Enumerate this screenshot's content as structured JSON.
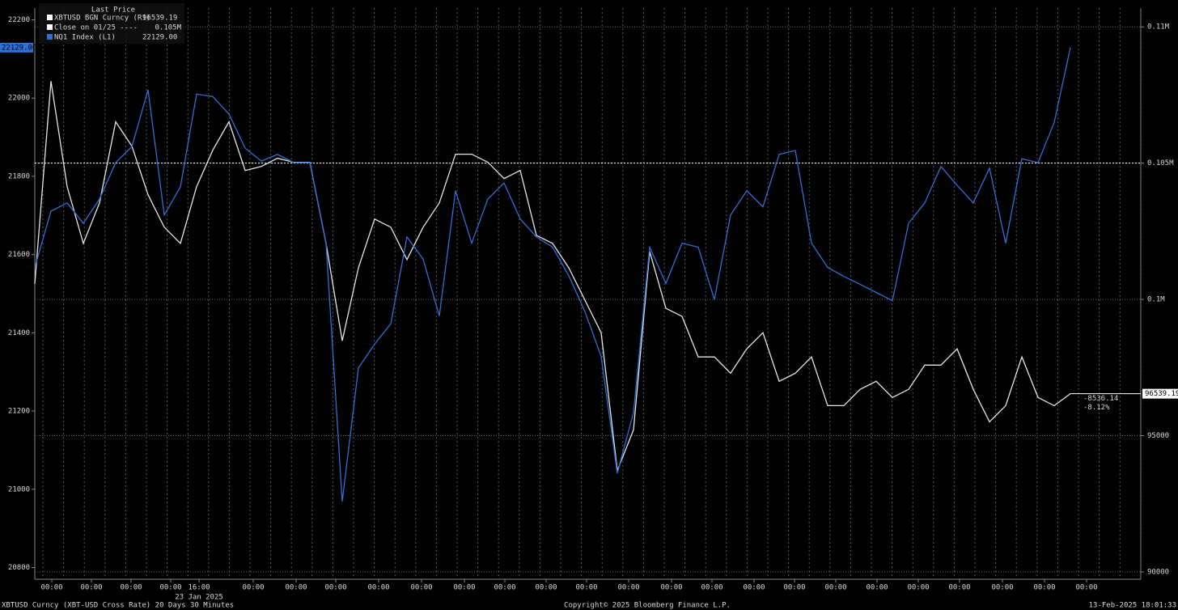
{
  "chart_data": {
    "type": "line",
    "legend_title": "Last Price",
    "footer_left": "XBTUSD Curncy (XBT-USD Cross Rate) 20 Days 30 Minutes",
    "footer_center": "Copyright© 2025 Bloomberg Finance L.P.",
    "footer_right": "13-Feb-2025 18:01:33",
    "xtick_labels": [
      "00:00",
      "00:00",
      "00:00",
      "00:00",
      "16:00",
      "00:00",
      "00:00",
      "00:00",
      "00:00",
      "00:00",
      "00:00",
      "00:00",
      "00:00",
      "00:00",
      "00:00",
      "00:00",
      "00:00",
      "00:00",
      "00:00",
      "00:00",
      "00:00",
      "00:00",
      "00:00",
      "00:00",
      "00:00",
      "00:00"
    ],
    "xdate_label": "23 Jan 2025",
    "ylim": [
      20770,
      22230
    ],
    "yticks": [
      20800,
      21000,
      21200,
      21400,
      21600,
      21800,
      22000,
      22200
    ],
    "y2lim": [
      89730,
      110690
    ],
    "y2ticks": [
      90000,
      95000,
      {
        "value": 100000,
        "label": "0.1M"
      },
      {
        "value": 105000,
        "label": "0.105M"
      },
      {
        "value": 110000,
        "label": "0.11M"
      }
    ],
    "grid": true,
    "close": {
      "label": "Close on 01/25 ----",
      "value": 105000,
      "value_label": "0.105M"
    },
    "change": {
      "value": -8536.14,
      "percent_label": "-8.12%",
      "percent": -8.12
    },
    "series": [
      {
        "name": "XBTUSD BGN Curncy (R1)",
        "color": "#e6e6e6",
        "axis": "y2",
        "last_value_label": "96539.19",
        "values": [
          100566,
          108006,
          104137,
          102054,
          103542,
          106518,
          105625,
          103840,
          102649,
          102054,
          104137,
          105477,
          106518,
          104732,
          104881,
          105179,
          105030,
          105030,
          102054,
          98483,
          101161,
          102947,
          102649,
          101459,
          102649,
          103542,
          105328,
          105328,
          105030,
          104435,
          104732,
          102352,
          102054,
          101161,
          99971,
          98780,
          93721,
          95209,
          101757,
          99673,
          99376,
          97888,
          97888,
          97292,
          98185,
          98780,
          96995,
          97292,
          97888,
          96102,
          96102,
          96697,
          96995,
          96400,
          96697,
          97590,
          97590,
          98185,
          96697,
          95507,
          96102,
          97888,
          96400,
          96102,
          96539.19
        ]
      },
      {
        "name": "NQ1 Index (L1)",
        "color": "#2f6fd6",
        "axis": "y",
        "last_value_label": "22129.00",
        "values": [
          21567,
          21711,
          21732,
          21680,
          21742,
          21835,
          21876,
          22021,
          21701,
          21773,
          22010,
          22004,
          21959,
          21872,
          21839,
          21856,
          21835,
          21835,
          21629,
          20969,
          21310,
          21371,
          21423,
          21645,
          21588,
          21443,
          21763,
          21629,
          21742,
          21783,
          21691,
          21645,
          21619,
          21546,
          21454,
          21340,
          21041,
          21196,
          21619,
          21526,
          21629,
          21619,
          21485,
          21701,
          21763,
          21722,
          21856,
          21866,
          21629,
          21567,
          21544,
          21524,
          21503,
          21482,
          21680,
          21732,
          21825,
          21777,
          21732,
          21821,
          21629,
          21845,
          21835,
          21938,
          22129
        ]
      }
    ]
  }
}
